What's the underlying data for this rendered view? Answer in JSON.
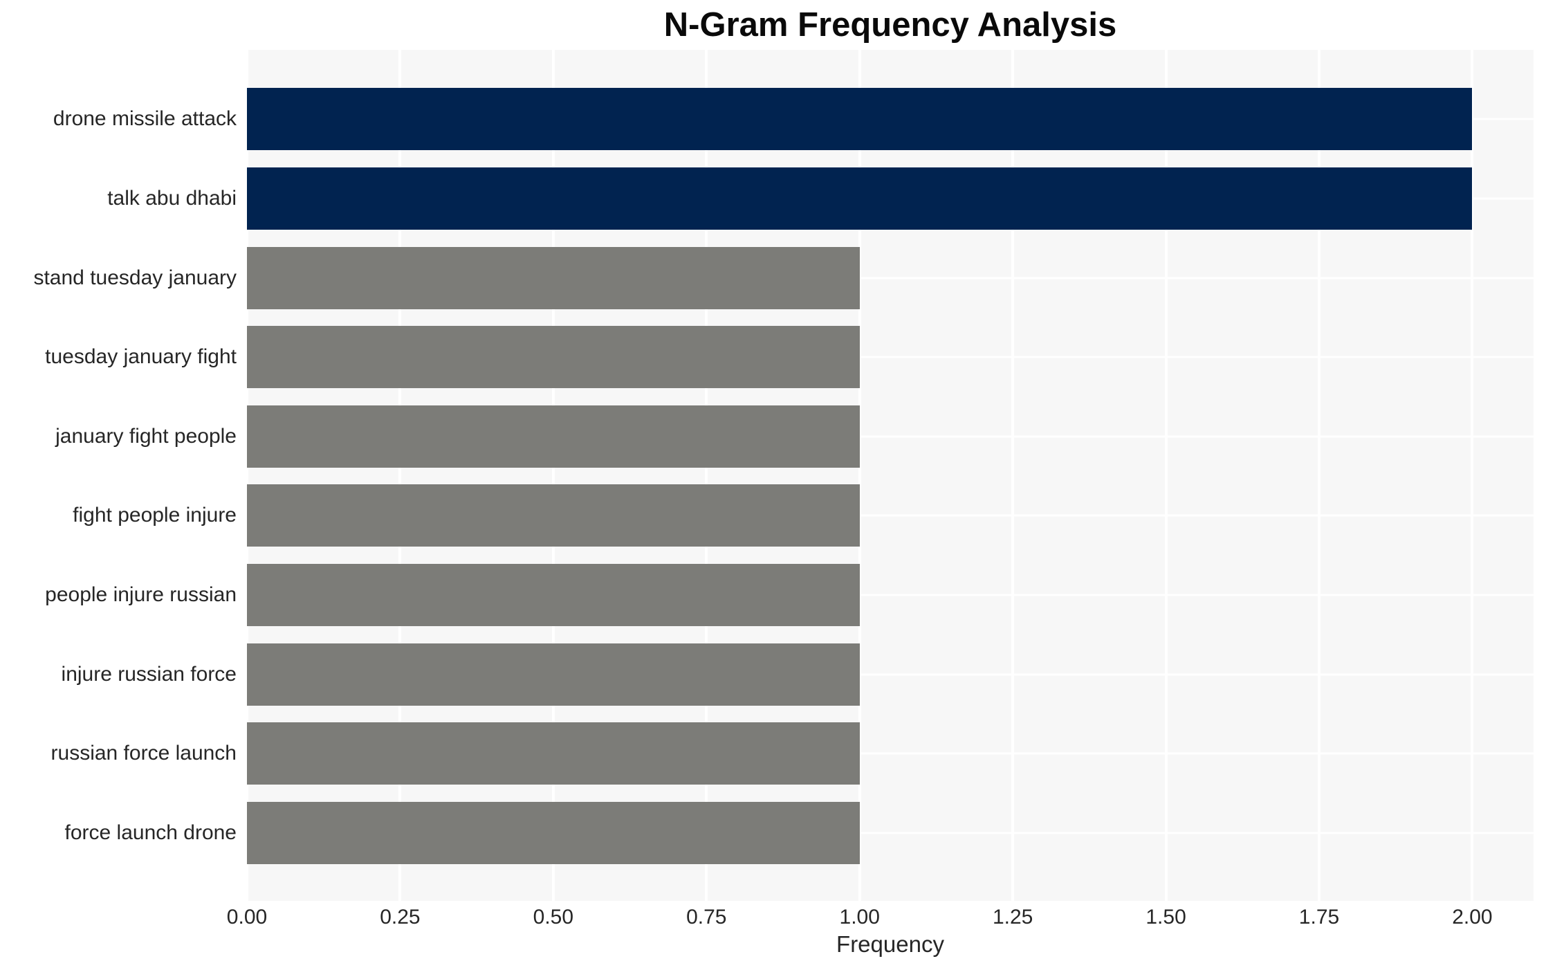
{
  "chart_data": {
    "type": "bar",
    "orientation": "horizontal",
    "title": "N-Gram Frequency Analysis",
    "xlabel": "Frequency",
    "ylabel": "",
    "categories": [
      "drone missile attack",
      "talk abu dhabi",
      "stand tuesday january",
      "tuesday january fight",
      "january fight people",
      "fight people injure",
      "people injure russian",
      "injure russian force",
      "russian force launch",
      "force launch drone"
    ],
    "values": [
      2,
      2,
      1,
      1,
      1,
      1,
      1,
      1,
      1,
      1
    ],
    "bar_colors": [
      "#012350",
      "#012350",
      "#7c7c78",
      "#7c7c78",
      "#7c7c78",
      "#7c7c78",
      "#7c7c78",
      "#7c7c78",
      "#7c7c78",
      "#7c7c78"
    ],
    "xlim": [
      0,
      2.1
    ],
    "xtick_labels": [
      "0.00",
      "0.25",
      "0.50",
      "0.75",
      "1.00",
      "1.25",
      "1.50",
      "1.75",
      "2.00"
    ],
    "xtick_values": [
      0,
      0.25,
      0.5,
      0.75,
      1.0,
      1.25,
      1.5,
      1.75,
      2.0
    ],
    "grid": true,
    "legend": false
  },
  "style": {
    "panel_background": "#f7f7f7",
    "page_background": "#ffffff",
    "grid_color": "#ffffff",
    "text_color": "#262626",
    "title_color": "#0a0a0a",
    "accent_navy": "#012350",
    "accent_gray": "#7c7c78"
  }
}
